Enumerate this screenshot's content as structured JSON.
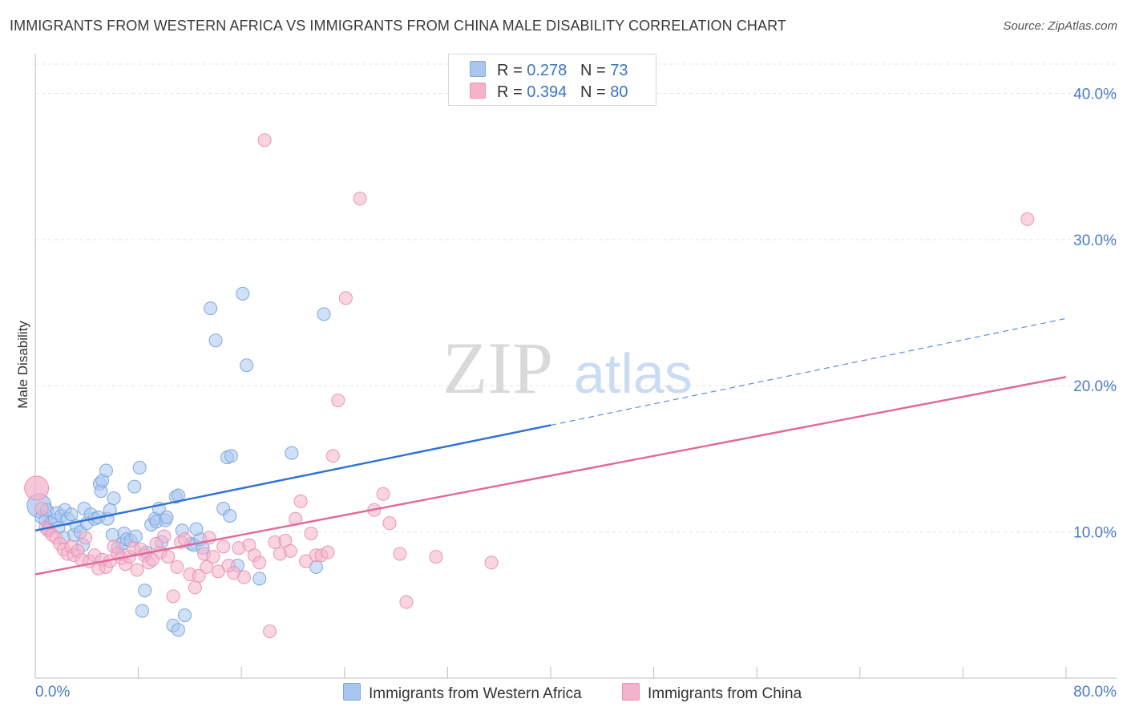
{
  "header": {
    "title": "IMMIGRANTS FROM WESTERN AFRICA VS IMMIGRANTS FROM CHINA MALE DISABILITY CORRELATION CHART",
    "source": "Source: ZipAtlas.com"
  },
  "legend": {
    "r_label": "R =",
    "n_label": "N =",
    "rows": [
      {
        "r": "0.278",
        "n": "73"
      },
      {
        "r": "0.394",
        "n": "80"
      }
    ]
  },
  "watermark": {
    "zip": "ZIP",
    "atlas": "atlas"
  },
  "colors": {
    "blue": "#2f72d1",
    "blue_fill": "#a9c7ee",
    "pink": "#e0689a",
    "pink_fill": "#f4b3cb",
    "tick": "#4a7cc9"
  },
  "chart_data": {
    "type": "scatter",
    "title": "IMMIGRANTS FROM WESTERN AFRICA VS IMMIGRANTS FROM CHINA MALE DISABILITY CORRELATION CHART",
    "xlabel": "",
    "ylabel": "Male Disability",
    "xlim": [
      0,
      80
    ],
    "ylim": [
      0,
      42
    ],
    "x_tick_labels": [
      "0.0%",
      "80.0%"
    ],
    "y_ticks": [
      10,
      20,
      30,
      40
    ],
    "y_tick_labels": [
      "10.0%",
      "20.0%",
      "30.0%",
      "40.0%"
    ],
    "grid": true,
    "legend_position": "top-center",
    "series": [
      {
        "name": "Immigrants from Western Africa",
        "color": "#2f72d1",
        "r": 0.278,
        "n": 73,
        "trend": {
          "x0": 0,
          "y0": 10.1,
          "x1": 40,
          "y1": 17.3,
          "dash_x1": 80,
          "dash_y1": 24.6
        },
        "points": [
          [
            0.3,
            11.8
          ],
          [
            0.5,
            11.0
          ],
          [
            0.8,
            10.8
          ],
          [
            0.9,
            11.5
          ],
          [
            1.2,
            10.6
          ],
          [
            1.5,
            10.8
          ],
          [
            1.7,
            11.3
          ],
          [
            1.8,
            10.3
          ],
          [
            2.0,
            11.1
          ],
          [
            2.3,
            11.5
          ],
          [
            2.5,
            10.9
          ],
          [
            2.8,
            11.2
          ],
          [
            3.0,
            9.8
          ],
          [
            3.2,
            10.4
          ],
          [
            3.5,
            10.0
          ],
          [
            3.8,
            11.6
          ],
          [
            4.0,
            10.6
          ],
          [
            4.3,
            11.2
          ],
          [
            4.6,
            10.9
          ],
          [
            4.9,
            11.0
          ],
          [
            5.0,
            13.3
          ],
          [
            5.1,
            12.8
          ],
          [
            5.2,
            13.5
          ],
          [
            5.5,
            14.2
          ],
          [
            5.6,
            10.9
          ],
          [
            5.8,
            11.5
          ],
          [
            6.0,
            9.8
          ],
          [
            6.1,
            12.3
          ],
          [
            6.4,
            8.9
          ],
          [
            6.8,
            9.2
          ],
          [
            6.9,
            9.9
          ],
          [
            7.1,
            9.5
          ],
          [
            7.4,
            9.4
          ],
          [
            7.7,
            13.1
          ],
          [
            7.8,
            9.7
          ],
          [
            8.1,
            14.4
          ],
          [
            8.6,
            8.6
          ],
          [
            9.0,
            10.5
          ],
          [
            9.3,
            10.9
          ],
          [
            9.4,
            10.7
          ],
          [
            9.6,
            11.6
          ],
          [
            10.1,
            10.8
          ],
          [
            10.2,
            11.0
          ],
          [
            10.9,
            12.4
          ],
          [
            11.1,
            12.5
          ],
          [
            11.4,
            10.1
          ],
          [
            12.1,
            9.2
          ],
          [
            12.3,
            9.1
          ],
          [
            12.8,
            9.5
          ],
          [
            13.0,
            8.9
          ],
          [
            13.6,
            25.3
          ],
          [
            14.0,
            23.1
          ],
          [
            14.6,
            11.6
          ],
          [
            14.9,
            15.1
          ],
          [
            15.1,
            11.1
          ],
          [
            15.2,
            15.2
          ],
          [
            15.7,
            7.7
          ],
          [
            16.1,
            26.3
          ],
          [
            16.4,
            21.4
          ],
          [
            17.4,
            6.8
          ],
          [
            19.9,
            15.4
          ],
          [
            21.8,
            7.6
          ],
          [
            22.4,
            24.9
          ],
          [
            8.3,
            4.6
          ],
          [
            8.5,
            6.0
          ],
          [
            10.7,
            3.6
          ],
          [
            11.1,
            3.3
          ],
          [
            11.6,
            4.3
          ],
          [
            1.0,
            10.2
          ],
          [
            2.2,
            9.6
          ],
          [
            12.5,
            10.2
          ],
          [
            3.7,
            9.1
          ],
          [
            9.8,
            9.3
          ]
        ]
      },
      {
        "name": "Immigrants from China",
        "color": "#e0689a",
        "r": 0.394,
        "n": 80,
        "trend": {
          "x0": 0,
          "y0": 7.1,
          "x1": 80,
          "y1": 20.6
        },
        "points": [
          [
            0.1,
            13.0
          ],
          [
            0.5,
            11.6
          ],
          [
            0.8,
            10.3
          ],
          [
            1.0,
            10.1
          ],
          [
            1.3,
            9.8
          ],
          [
            1.6,
            9.6
          ],
          [
            1.9,
            9.2
          ],
          [
            2.2,
            8.8
          ],
          [
            2.5,
            8.5
          ],
          [
            2.8,
            9.0
          ],
          [
            3.0,
            8.4
          ],
          [
            3.3,
            8.7
          ],
          [
            3.6,
            8.1
          ],
          [
            3.9,
            9.6
          ],
          [
            4.2,
            8.0
          ],
          [
            4.6,
            8.4
          ],
          [
            4.9,
            7.5
          ],
          [
            5.2,
            8.1
          ],
          [
            5.5,
            7.6
          ],
          [
            5.8,
            8.0
          ],
          [
            6.1,
            9.0
          ],
          [
            6.4,
            8.5
          ],
          [
            6.7,
            8.2
          ],
          [
            7.0,
            7.8
          ],
          [
            7.3,
            8.3
          ],
          [
            7.6,
            8.9
          ],
          [
            7.9,
            7.4
          ],
          [
            8.2,
            8.8
          ],
          [
            8.5,
            8.4
          ],
          [
            8.8,
            7.9
          ],
          [
            9.1,
            8.1
          ],
          [
            9.4,
            9.2
          ],
          [
            9.7,
            8.6
          ],
          [
            10.0,
            9.7
          ],
          [
            10.3,
            8.3
          ],
          [
            10.7,
            5.6
          ],
          [
            11.0,
            7.6
          ],
          [
            11.3,
            9.3
          ],
          [
            11.6,
            9.5
          ],
          [
            12.0,
            7.1
          ],
          [
            12.4,
            6.2
          ],
          [
            12.7,
            7.0
          ],
          [
            13.1,
            8.5
          ],
          [
            13.5,
            9.6
          ],
          [
            13.8,
            8.3
          ],
          [
            14.2,
            7.3
          ],
          [
            14.6,
            9.0
          ],
          [
            15.0,
            7.7
          ],
          [
            15.4,
            7.2
          ],
          [
            15.8,
            8.9
          ],
          [
            16.2,
            6.9
          ],
          [
            16.6,
            9.1
          ],
          [
            17.0,
            8.4
          ],
          [
            17.4,
            7.9
          ],
          [
            17.8,
            36.8
          ],
          [
            18.2,
            3.2
          ],
          [
            18.6,
            9.3
          ],
          [
            19.0,
            8.5
          ],
          [
            19.4,
            9.4
          ],
          [
            19.8,
            8.7
          ],
          [
            20.2,
            10.9
          ],
          [
            20.6,
            12.1
          ],
          [
            21.0,
            8.0
          ],
          [
            21.4,
            9.9
          ],
          [
            21.8,
            8.4
          ],
          [
            22.2,
            8.4
          ],
          [
            22.7,
            8.6
          ],
          [
            23.1,
            15.2
          ],
          [
            23.5,
            19.0
          ],
          [
            24.1,
            26.0
          ],
          [
            25.2,
            32.8
          ],
          [
            26.3,
            11.5
          ],
          [
            27.0,
            12.6
          ],
          [
            27.5,
            10.6
          ],
          [
            28.3,
            8.5
          ],
          [
            28.8,
            5.2
          ],
          [
            31.1,
            8.3
          ],
          [
            35.4,
            7.9
          ],
          [
            77.0,
            31.4
          ],
          [
            13.3,
            7.6
          ]
        ]
      }
    ]
  },
  "bottom_legend": {
    "items": [
      "Immigrants from Western Africa",
      "Immigrants from China"
    ]
  }
}
